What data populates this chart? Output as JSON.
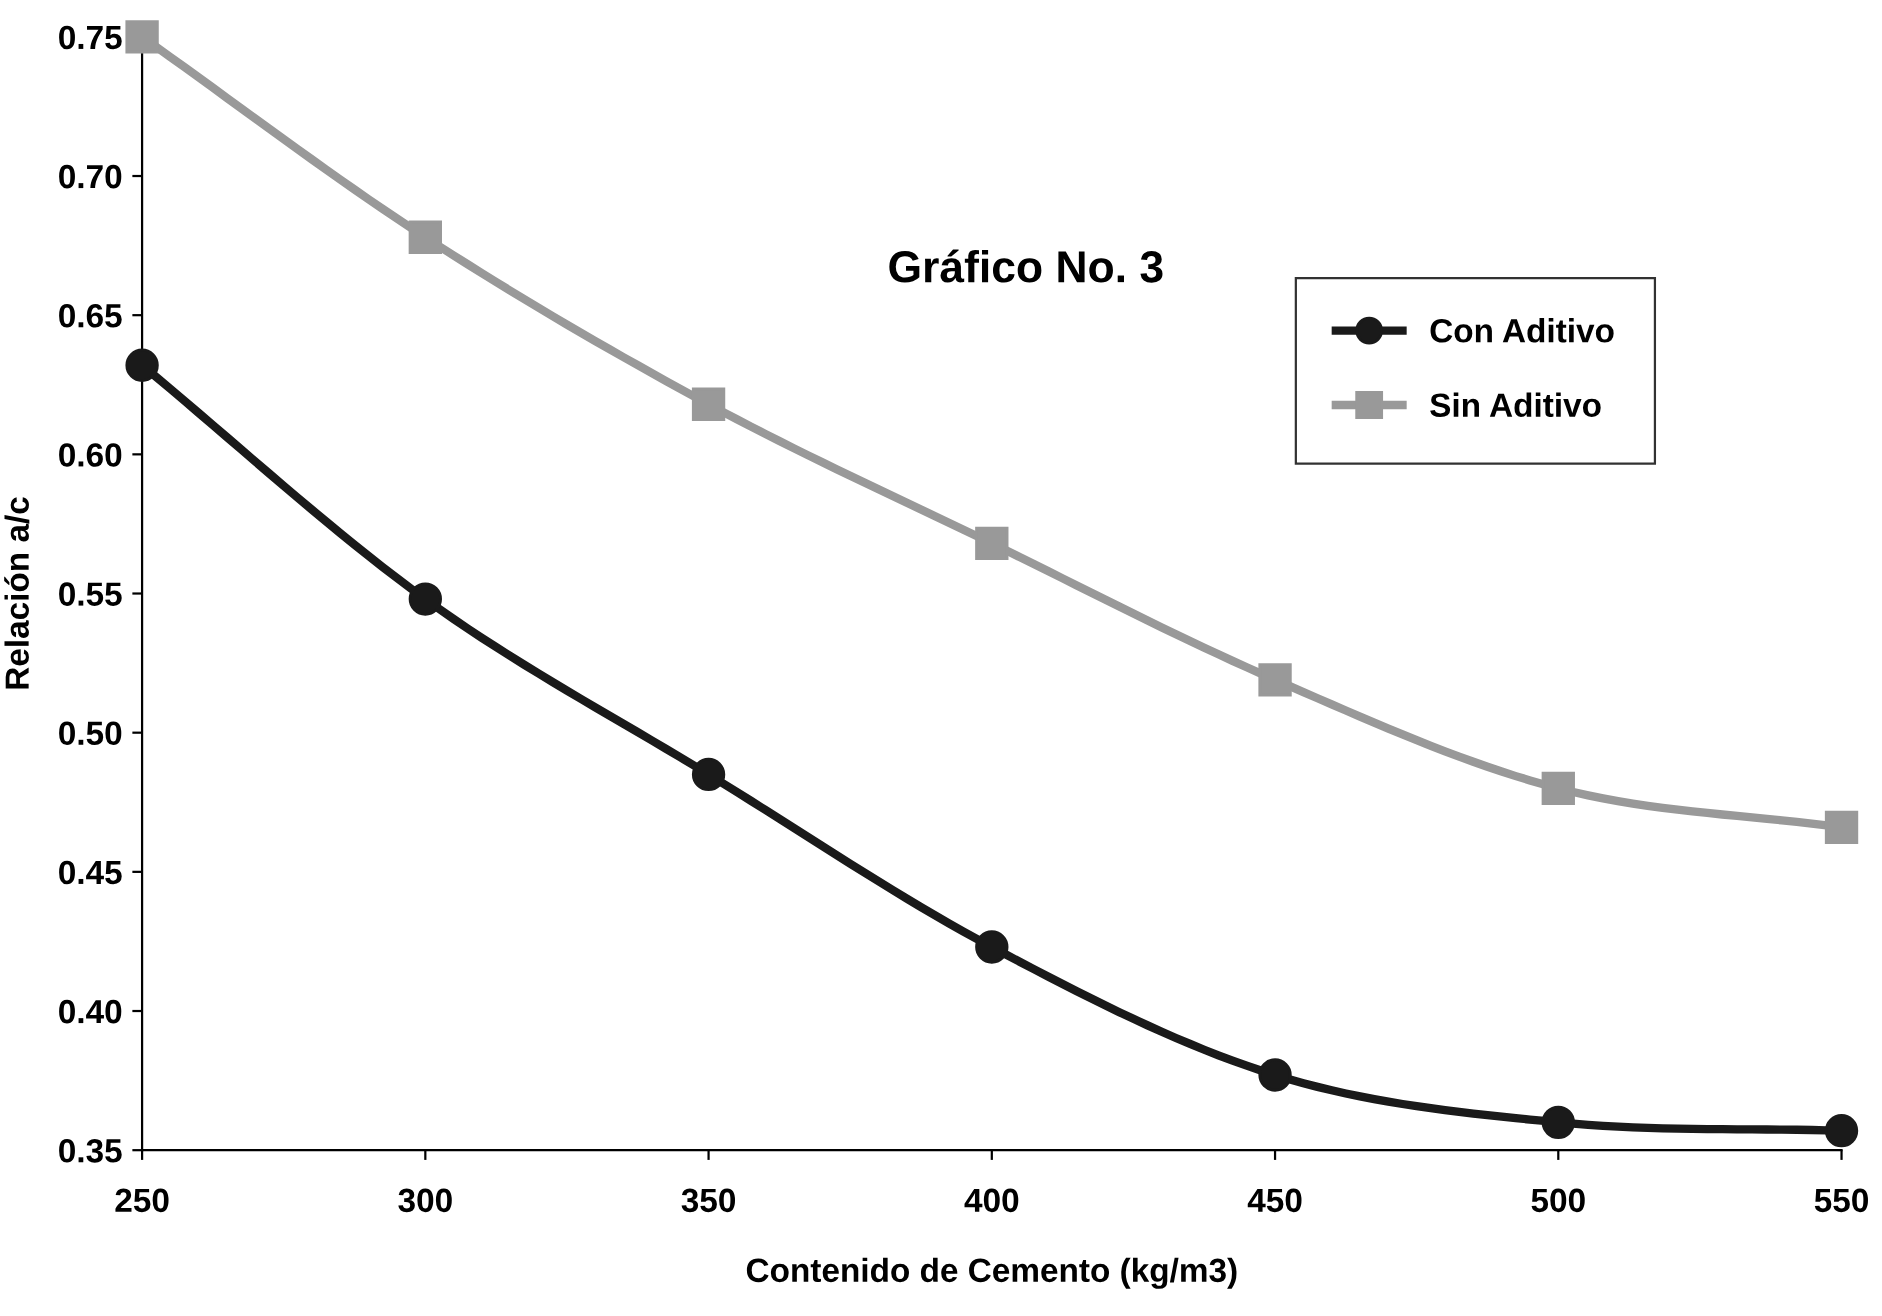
{
  "chart_data": {
    "type": "line",
    "title": "Gráfico No. 3",
    "xlabel": "Contenido de Cemento (kg/m3)",
    "ylabel": "Relación a/c",
    "x": [
      250,
      300,
      350,
      400,
      450,
      500,
      550
    ],
    "series": [
      {
        "name": "Con Aditivo",
        "color": "#1a1a1a",
        "marker": "circle",
        "values": [
          0.632,
          0.548,
          0.485,
          0.423,
          0.377,
          0.36,
          0.357
        ]
      },
      {
        "name": "Sin Aditivo",
        "color": "#999999",
        "marker": "square",
        "values": [
          0.75,
          0.678,
          0.618,
          0.568,
          0.519,
          0.48,
          0.466
        ]
      }
    ],
    "xlim": [
      250,
      550
    ],
    "xticks": [
      250,
      300,
      350,
      400,
      450,
      500,
      550
    ],
    "ylim": [
      0.35,
      0.75
    ],
    "yticks": [
      {
        "value": 0.35,
        "label": "0.35"
      },
      {
        "value": 0.4,
        "label": "0.40"
      },
      {
        "value": 0.45,
        "label": "0.45"
      },
      {
        "value": 0.5,
        "label": "0.50"
      },
      {
        "value": 0.55,
        "label": "0.55"
      },
      {
        "value": 0.6,
        "label": "0.60"
      },
      {
        "value": 0.65,
        "label": "0.65"
      },
      {
        "value": 0.7,
        "label": "0.70"
      },
      {
        "value": 0.75,
        "label": "0.75"
      }
    ],
    "grid": false,
    "legend": "right",
    "line_style": "solid"
  }
}
